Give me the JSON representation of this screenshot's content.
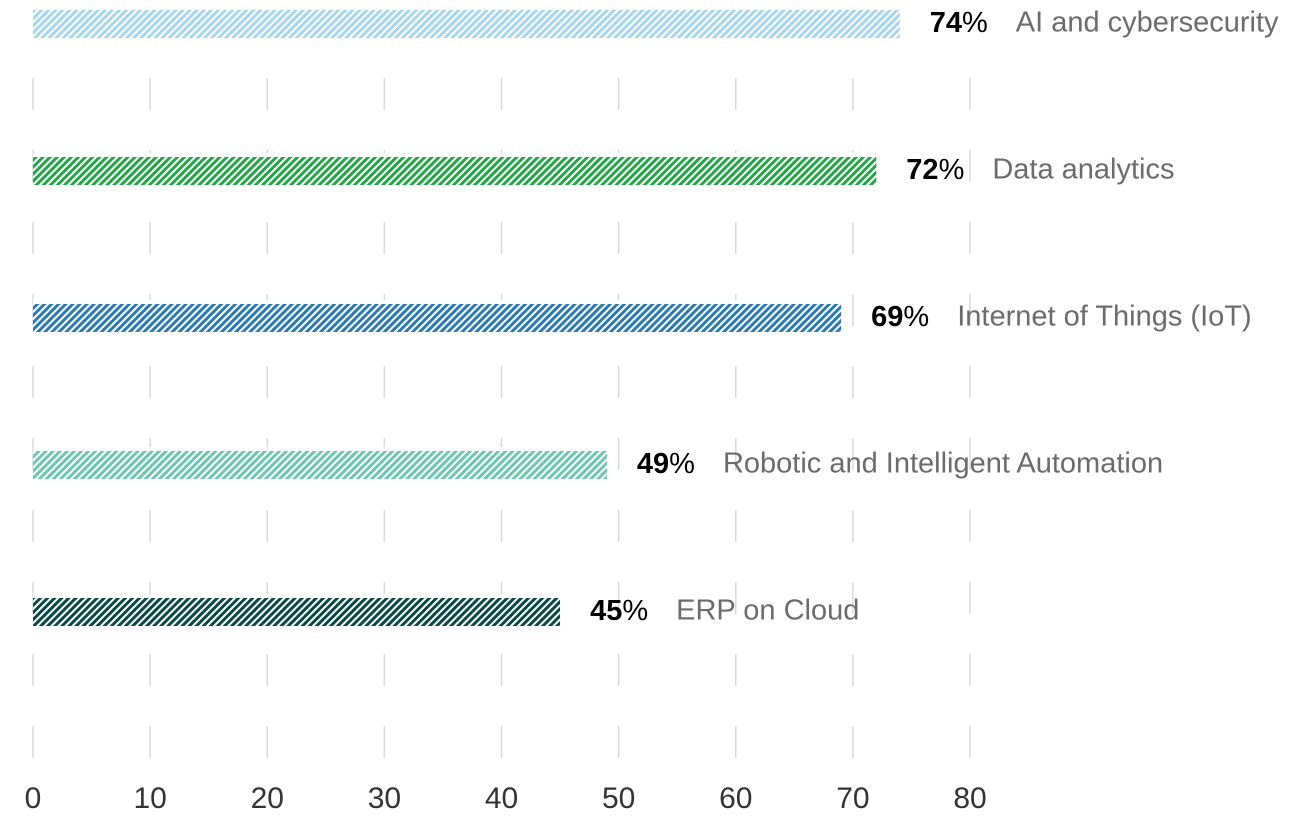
{
  "chart_data": {
    "type": "barh",
    "categories": [
      "AI and cybersecurity",
      "Data analytics",
      "Internet of Things (IoT)",
      "Robotic and Intelligent Automation",
      "ERP on Cloud"
    ],
    "values": [
      74,
      72,
      69,
      49,
      45
    ],
    "value_labels": [
      "74%",
      "72%",
      "69%",
      "49%",
      "45%"
    ],
    "colors": [
      "#a6d6ee",
      "#26a448",
      "#2b7bb0",
      "#6cc7ae",
      "#0b4a44"
    ],
    "xlim": [
      0,
      80
    ],
    "xticks": [
      0,
      10,
      20,
      30,
      40,
      50,
      60,
      70,
      80
    ],
    "grid": true
  }
}
